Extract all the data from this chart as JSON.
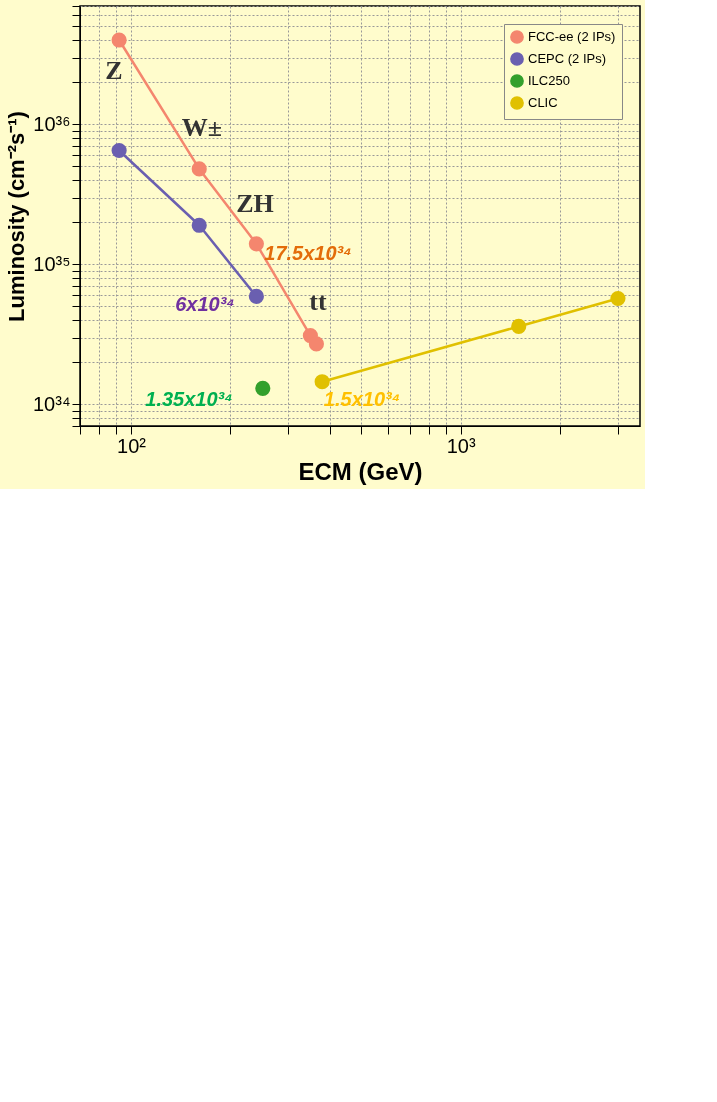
{
  "chart_data": {
    "type": "line",
    "xlabel": "ECM (GeV)",
    "ylabel": "Luminosity (cm⁻²s⁻¹)",
    "series": [
      {
        "name": "FCC-ee (2 IPs)",
        "color": "#f4866e",
        "x": [
          92,
          161,
          240,
          350,
          365
        ],
        "values": [
          4e+36,
          4.8e+35,
          1.4e+35,
          3.1e+34,
          2.7e+34
        ]
      },
      {
        "name": "CEPC (2 IPs)",
        "color": "#6a5fb0",
        "x": [
          92,
          161,
          240
        ],
        "values": [
          6.5e+35,
          1.9e+35,
          5.9e+34
        ]
      },
      {
        "name": "ILC250",
        "color": "#33a02c",
        "x": [
          251
        ],
        "values": [
          1.3e+34
        ]
      },
      {
        "name": "CLIC",
        "color": "#e0c000",
        "x": [
          380,
          1500,
          3000
        ],
        "values": [
          1.45e+34,
          3.6e+34,
          5.7e+34
        ]
      }
    ],
    "xlim": [
      70,
      3500
    ],
    "ylim": [
      7e+33,
      7e+36
    ],
    "log": "xy",
    "xticks": [
      {
        "value": 70,
        "label": null
      },
      {
        "value": 80,
        "label": null
      },
      {
        "value": 90,
        "label": null
      },
      {
        "value": 100,
        "label": "10²"
      },
      {
        "value": 200,
        "label": null
      },
      {
        "value": 300,
        "label": null
      },
      {
        "value": 400,
        "label": null
      },
      {
        "value": 500,
        "label": null
      },
      {
        "value": 600,
        "label": null
      },
      {
        "value": 700,
        "label": null
      },
      {
        "value": 800,
        "label": null
      },
      {
        "value": 900,
        "label": null
      },
      {
        "value": 1000,
        "label": "10³"
      },
      {
        "value": 2000,
        "label": null
      },
      {
        "value": 3000,
        "label": null
      }
    ],
    "yticks": [
      {
        "value": 7e+33,
        "label": null
      },
      {
        "value": 8e+33,
        "label": null
      },
      {
        "value": 9e+33,
        "label": null
      },
      {
        "value": 1e+34,
        "label": "10³⁴"
      },
      {
        "value": 2e+34,
        "label": null
      },
      {
        "value": 3e+34,
        "label": null
      },
      {
        "value": 4e+34,
        "label": null
      },
      {
        "value": 5e+34,
        "label": null
      },
      {
        "value": 6e+34,
        "label": null
      },
      {
        "value": 7e+34,
        "label": null
      },
      {
        "value": 8e+34,
        "label": null
      },
      {
        "value": 9e+34,
        "label": null
      },
      {
        "value": 1e+35,
        "label": "10³⁵"
      },
      {
        "value": 2e+35,
        "label": null
      },
      {
        "value": 3e+35,
        "label": null
      },
      {
        "value": 4e+35,
        "label": null
      },
      {
        "value": 5e+35,
        "label": null
      },
      {
        "value": 6e+35,
        "label": null
      },
      {
        "value": 7e+35,
        "label": null
      },
      {
        "value": 8e+35,
        "label": null
      },
      {
        "value": 9e+35,
        "label": null
      },
      {
        "value": 1e+36,
        "label": "10³⁶"
      },
      {
        "value": 2e+36,
        "label": null
      },
      {
        "value": 3e+36,
        "label": null
      },
      {
        "value": 4e+36,
        "label": null
      },
      {
        "value": 5e+36,
        "label": null
      },
      {
        "value": 6e+36,
        "label": null
      },
      {
        "value": 7e+36,
        "label": null
      }
    ],
    "grid": true,
    "legend": "top right",
    "marker": "circle",
    "annotations": [
      "Z",
      "W±",
      "ZH",
      "tt",
      "17.5x10³⁴",
      "6x10³⁴",
      "1.35x10³⁴",
      "1.5x10³⁴"
    ]
  }
}
